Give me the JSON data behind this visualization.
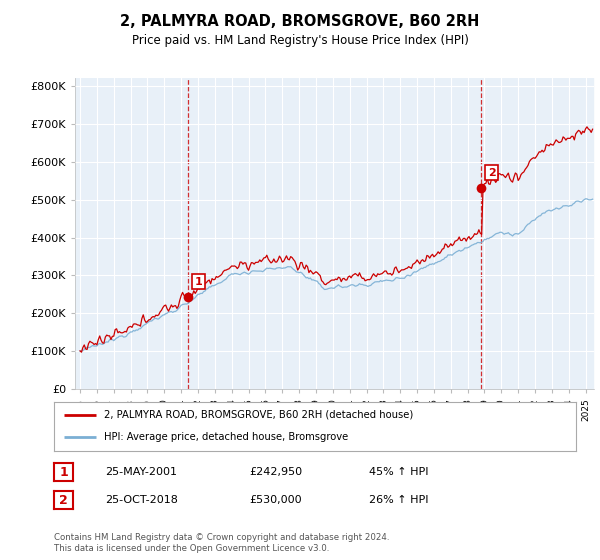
{
  "title": "2, PALMYRA ROAD, BROMSGROVE, B60 2RH",
  "subtitle": "Price paid vs. HM Land Registry's House Price Index (HPI)",
  "ylabel_ticks": [
    "£0",
    "£100K",
    "£200K",
    "£300K",
    "£400K",
    "£500K",
    "£600K",
    "£700K",
    "£800K"
  ],
  "ytick_values": [
    0,
    100000,
    200000,
    300000,
    400000,
    500000,
    600000,
    700000,
    800000
  ],
  "ylim": [
    0,
    820000
  ],
  "xlim_start": 1994.7,
  "xlim_end": 2025.5,
  "house_color": "#cc0000",
  "hpi_color": "#7bafd4",
  "dashed_color": "#cc0000",
  "bg_fill_color": "#ddeeff",
  "marker1_x": 2001.38,
  "marker1_y": 242950,
  "marker2_x": 2018.8,
  "marker2_y": 530000,
  "legend_house": "2, PALMYRA ROAD, BROMSGROVE, B60 2RH (detached house)",
  "legend_hpi": "HPI: Average price, detached house, Bromsgrove",
  "annotation1": [
    "1",
    "25-MAY-2001",
    "£242,950",
    "45% ↑ HPI"
  ],
  "annotation2": [
    "2",
    "25-OCT-2018",
    "£530,000",
    "26% ↑ HPI"
  ],
  "footer": "Contains HM Land Registry data © Crown copyright and database right 2024.\nThis data is licensed under the Open Government Licence v3.0.",
  "background_color": "#ffffff",
  "grid_color": "#cccccc",
  "plot_bg_color": "#e8f0f8"
}
